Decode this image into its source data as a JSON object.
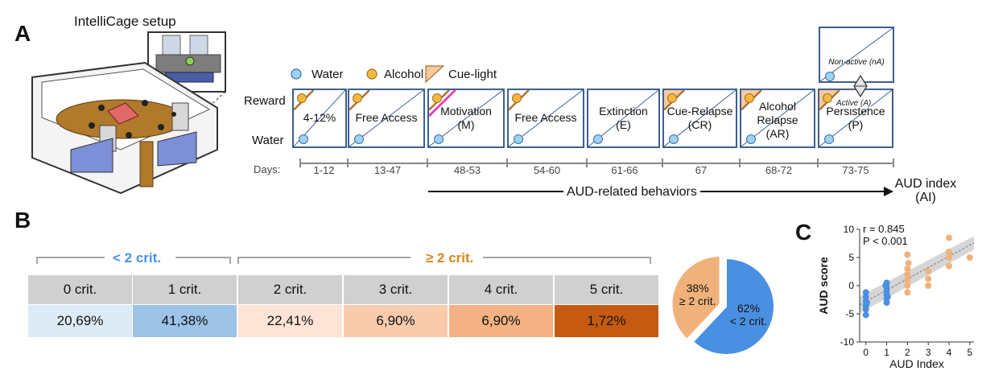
{
  "panels": {
    "a": "A",
    "b": "B",
    "c": "C"
  },
  "setup_title": "IntelliCage setup",
  "legend": {
    "water": "Water",
    "alcohol": "Alcohol",
    "cue": "Cue-light"
  },
  "row_labels": {
    "reward": "Reward",
    "water": "Water"
  },
  "phases": [
    {
      "label1": "",
      "label2": "4-12%",
      "days": "1-12",
      "alcohol": true,
      "cue": false,
      "magenta": false
    },
    {
      "label1": "",
      "label2": "Free Access",
      "days": "13-47",
      "alcohol": true,
      "cue": false,
      "magenta": false
    },
    {
      "label1": "Motivation",
      "label2": "(M)",
      "days": "48-53",
      "alcohol": true,
      "cue": false,
      "magenta": true
    },
    {
      "label1": "",
      "label2": "Free Access",
      "days": "54-60",
      "alcohol": true,
      "cue": false,
      "magenta": false
    },
    {
      "label1": "Extinction",
      "label2": "(E)",
      "days": "61-66",
      "alcohol": false,
      "cue": false,
      "magenta": false
    },
    {
      "label1": "Cue-Relapse",
      "label2": "(CR)",
      "days": "67",
      "alcohol": true,
      "cue": true,
      "magenta": false
    },
    {
      "label1": "Alcohol",
      "label2": "Relapse",
      "label3": "(AR)",
      "days": "68-72",
      "alcohol": true,
      "cue": true,
      "magenta": false
    },
    {
      "label1": "Persistence",
      "label2": "(P)",
      "days": "73-75",
      "alcohol": true,
      "cue": true,
      "magenta": false
    }
  ],
  "days_label": "Days:",
  "non_active": "Non-active (nA)",
  "active": "Active (A)",
  "aud_behaviors": "AUD-related behaviors",
  "aud_index": {
    "line1": "AUD index",
    "line2": "(AI)"
  },
  "groups": {
    "low": "< 2 crit.",
    "high": "≥ 2 crit."
  },
  "table": {
    "headers": [
      "0 crit.",
      "1 crit.",
      "2 crit.",
      "3 crit.",
      "4 crit.",
      "5 crit."
    ],
    "values": [
      "20,69%",
      "41,38%",
      "22,41%",
      "6,90%",
      "6,90%",
      "1,72%"
    ],
    "colors": [
      "#ddebf7",
      "#9dc3e6",
      "#fde4d6",
      "#f8cbad",
      "#f4b183",
      "#c55a11"
    ]
  },
  "pie": {
    "slices": [
      {
        "pct": "38%",
        "label": "≥ 2 crit.",
        "value": 38,
        "color": "#f0b27a"
      },
      {
        "pct": "62%",
        "label": "< 2 crit.",
        "value": 62,
        "color": "#4a90e2"
      }
    ]
  },
  "chart_data": {
    "type": "scatter",
    "xlabel": "AUD Index",
    "ylabel": "AUD score",
    "xlim": [
      -0.3,
      5.2
    ],
    "ylim": [
      -10,
      10
    ],
    "xticks": [
      0,
      1,
      2,
      3,
      4,
      5
    ],
    "yticks": [
      -10,
      -5,
      0,
      5,
      10
    ],
    "annotations": [
      "r = 0.845",
      "P < 0.001"
    ],
    "series": [
      {
        "color": "#4a90e2",
        "points": [
          [
            0,
            -1.2
          ],
          [
            0,
            -2
          ],
          [
            0,
            -2.8
          ],
          [
            0,
            -3.5
          ],
          [
            0,
            -4.2
          ],
          [
            0,
            -5.2
          ],
          [
            0.05,
            -3
          ],
          [
            1,
            0.5
          ],
          [
            1,
            -0.3
          ],
          [
            1,
            -1
          ],
          [
            1,
            -1.6
          ],
          [
            1,
            -2.3
          ],
          [
            1,
            -3
          ],
          [
            0.95,
            0
          ],
          [
            1.05,
            -2
          ]
        ]
      },
      {
        "color": "#f0b27a",
        "points": [
          [
            2,
            5.5
          ],
          [
            2,
            3
          ],
          [
            2,
            2
          ],
          [
            2,
            1
          ],
          [
            2,
            0
          ],
          [
            2,
            -1.2
          ],
          [
            2.05,
            4
          ],
          [
            3,
            2.5
          ],
          [
            3,
            1.2
          ],
          [
            3,
            0
          ],
          [
            4,
            8.5
          ],
          [
            4,
            6
          ],
          [
            4,
            5
          ],
          [
            4,
            3.5
          ],
          [
            5,
            5
          ]
        ]
      }
    ],
    "fit": {
      "intercept": -2.8,
      "slope": 2.0
    }
  }
}
